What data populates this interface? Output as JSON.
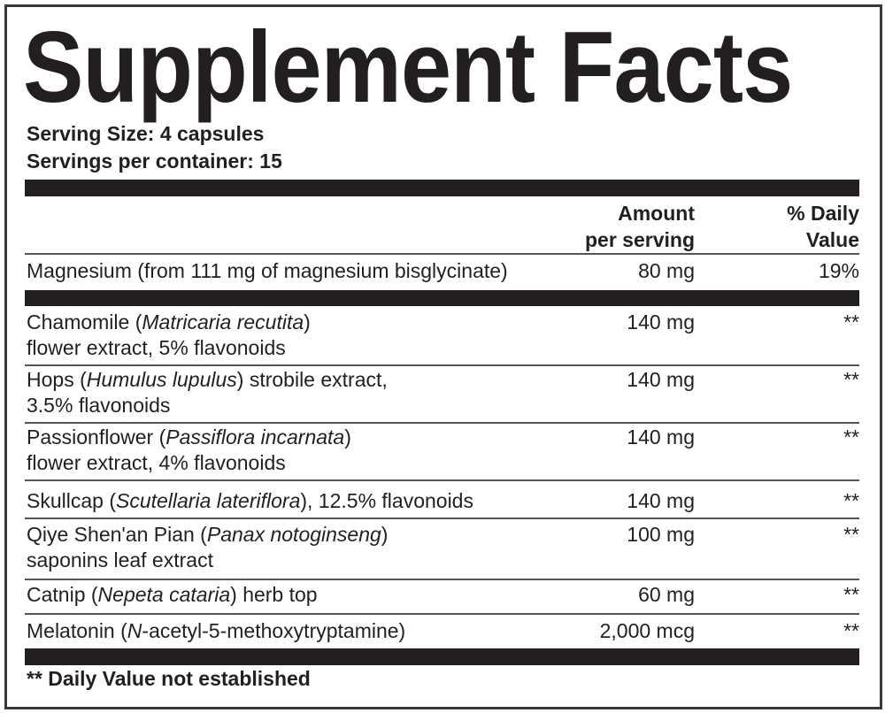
{
  "title": "Supplement Facts",
  "serving_size": "Serving Size: 4 capsules",
  "servings_per_container": "Servings per container: 15",
  "headers": {
    "amount_line1": "Amount",
    "amount_line2": "per serving",
    "dv_line1": "% Daily",
    "dv_line2": "Value"
  },
  "rows": [
    {
      "lines": [
        [
          {
            "t": "Magnesium (from 111 mg of magnesium bisglycinate)"
          }
        ]
      ],
      "amount": "80 mg",
      "dv": "19%"
    },
    {
      "lines": [
        [
          {
            "t": "Chamomile ("
          },
          {
            "t": "Matricaria recutita",
            "i": true
          },
          {
            "t": ")"
          }
        ],
        [
          {
            "t": "flower extract, 5% flavonoids"
          }
        ]
      ],
      "amount": "140 mg",
      "dv": "**"
    },
    {
      "lines": [
        [
          {
            "t": "Hops ("
          },
          {
            "t": "Humulus lupulus",
            "i": true
          },
          {
            "t": ") strobile extract,"
          }
        ],
        [
          {
            "t": "3.5% flavonoids"
          }
        ]
      ],
      "amount": "140 mg",
      "dv": "**"
    },
    {
      "lines": [
        [
          {
            "t": "Passionflower ("
          },
          {
            "t": "Passiflora incarnata",
            "i": true
          },
          {
            "t": ")"
          }
        ],
        [
          {
            "t": "flower extract, 4% flavonoids"
          }
        ]
      ],
      "amount": "140 mg",
      "dv": "**"
    },
    {
      "lines": [
        [
          {
            "t": "Skullcap ("
          },
          {
            "t": "Scutellaria lateriflora",
            "i": true
          },
          {
            "t": "), 12.5% flavonoids"
          }
        ]
      ],
      "amount": "140 mg",
      "dv": "**"
    },
    {
      "lines": [
        [
          {
            "t": "Qiye Shen'an Pian ("
          },
          {
            "t": "Panax notoginseng",
            "i": true
          },
          {
            "t": ")"
          }
        ],
        [
          {
            "t": "saponins leaf extract"
          }
        ]
      ],
      "amount": "100 mg",
      "dv": "**"
    },
    {
      "lines": [
        [
          {
            "t": "Catnip ("
          },
          {
            "t": "Nepeta cataria",
            "i": true
          },
          {
            "t": ") herb top"
          }
        ]
      ],
      "amount": "60 mg",
      "dv": "**"
    },
    {
      "lines": [
        [
          {
            "t": "Melatonin ("
          },
          {
            "t": "N",
            "i": true
          },
          {
            "t": "-acetyl-5-methoxytryptamine)"
          }
        ]
      ],
      "amount": "2,000 mcg",
      "dv": "**"
    }
  ],
  "footnote": "** Daily Value not established"
}
